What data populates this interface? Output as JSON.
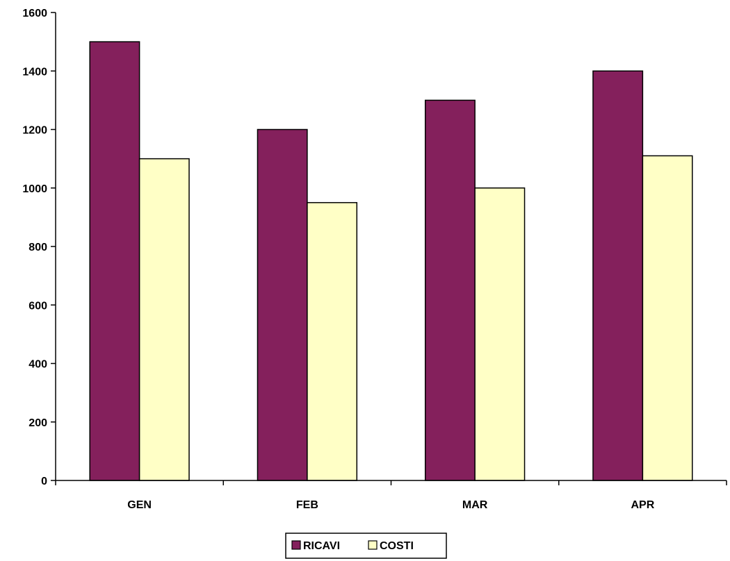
{
  "chart_data": {
    "type": "bar",
    "categories": [
      "GEN",
      "FEB",
      "MAR",
      "APR"
    ],
    "series": [
      {
        "name": "RICAVI",
        "values": [
          1500,
          1200,
          1300,
          1400
        ],
        "color": "#84205C"
      },
      {
        "name": "COSTI",
        "values": [
          1100,
          950,
          1000,
          1110
        ],
        "color": "#FFFFC6"
      }
    ],
    "ylim": [
      0,
      1600
    ],
    "yticks": [
      0,
      200,
      400,
      600,
      800,
      1000,
      1200,
      1400,
      1600
    ],
    "grid": false,
    "legend_position": "bottom-center"
  }
}
